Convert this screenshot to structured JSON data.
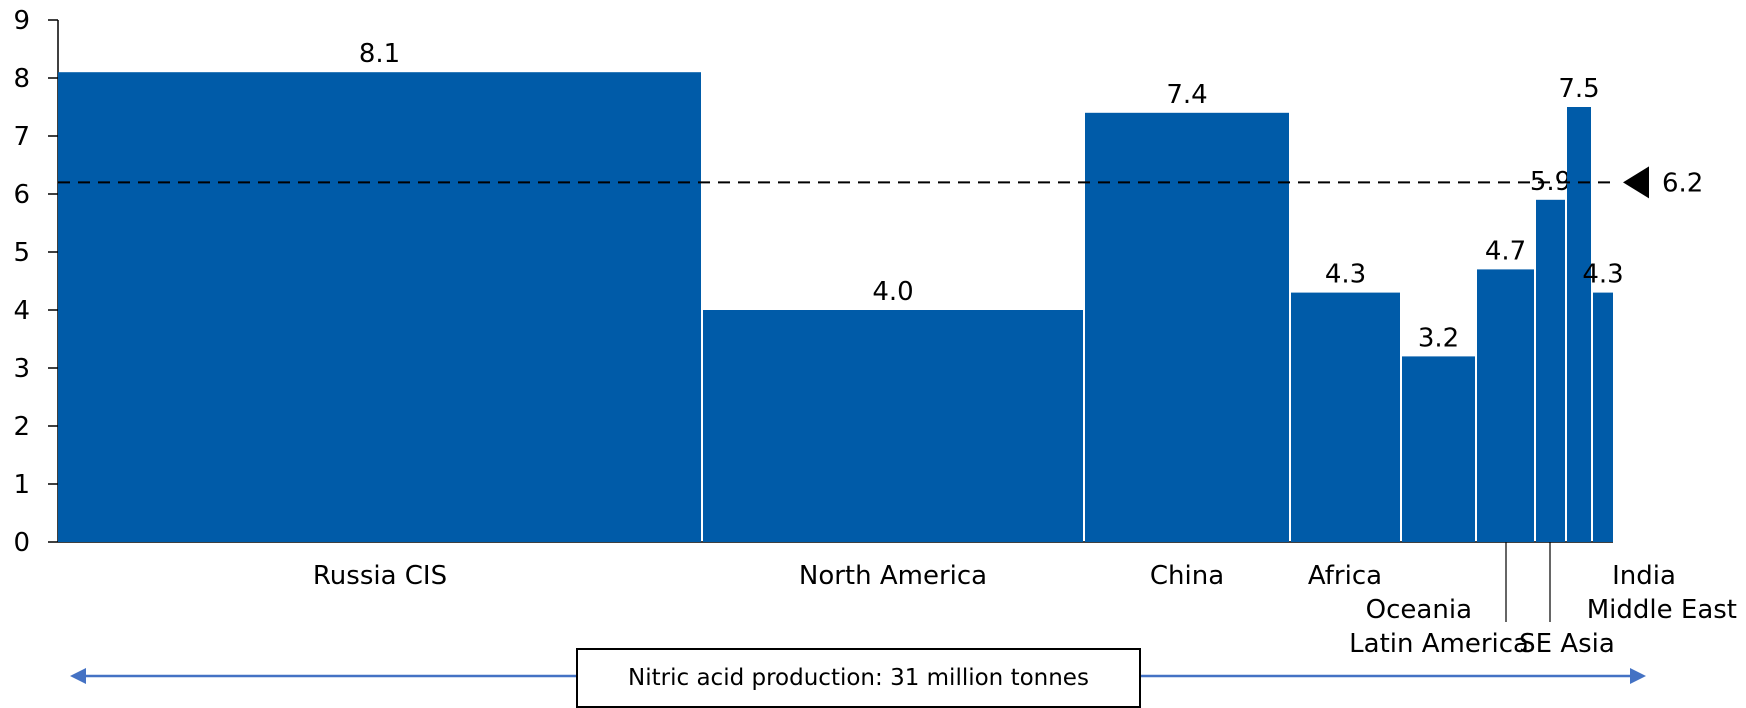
{
  "chart_data": {
    "type": "bar",
    "title": "",
    "xlabel": "",
    "ylabel": "",
    "ylim": [
      0,
      9
    ],
    "yticks": [
      0,
      1,
      2,
      3,
      4,
      5,
      6,
      7,
      8,
      9
    ],
    "grid": false,
    "legend": "none",
    "bar_color": "#005ba8",
    "variable_width": true,
    "width_axis_label": "Nitric acid production: 31 million tonnes",
    "categories": [
      "Russia CIS",
      "North America",
      "China",
      "Africa",
      "Oceania",
      "Latin America",
      "SE Asia",
      "Middle East",
      "India"
    ],
    "values": [
      8.1,
      4.0,
      7.4,
      4.3,
      3.2,
      4.7,
      5.9,
      7.5,
      4.3
    ],
    "value_labels": [
      "8.1",
      "4.0",
      "7.4",
      "4.3",
      "3.2",
      "4.7",
      "5.9",
      "7.5",
      "4.3"
    ],
    "average": {
      "value": 6.2,
      "label": "6.2"
    }
  }
}
